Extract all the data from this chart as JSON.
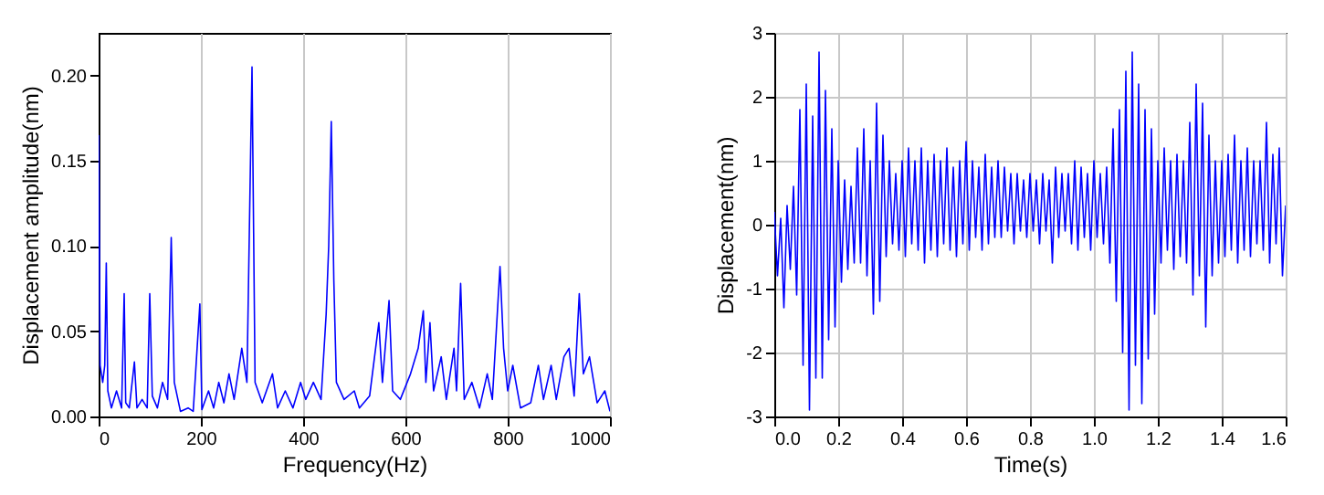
{
  "chart_data": [
    {
      "type": "line",
      "xlabel": "Frequency(Hz)",
      "ylabel": "Displacement amplitude(nm)",
      "grid": "x",
      "xlim": [
        0,
        1000
      ],
      "xticks": [
        0,
        200,
        400,
        600,
        800,
        1000
      ],
      "ylim": [
        0,
        0.225
      ],
      "yticks": [
        {
          "value": 0,
          "label": "0.00"
        },
        {
          "value": 0.05,
          "label": "0.05"
        },
        {
          "value": 0.1,
          "label": "0.10"
        },
        {
          "value": 0.15,
          "label": "0.15"
        },
        {
          "value": 0.2,
          "label": "0.20"
        }
      ],
      "x": [
        0,
        3,
        8,
        12,
        15,
        18,
        25,
        35,
        45,
        50,
        53,
        60,
        70,
        75,
        85,
        95,
        100,
        105,
        115,
        125,
        135,
        142,
        148,
        160,
        175,
        185,
        198,
        202,
        215,
        225,
        235,
        245,
        255,
        265,
        280,
        290,
        300,
        306,
        320,
        340,
        350,
        365,
        380,
        395,
        405,
        420,
        435,
        445,
        450,
        455,
        460,
        465,
        480,
        500,
        510,
        530,
        548,
        555,
        568,
        575,
        590,
        610,
        625,
        635,
        640,
        648,
        655,
        670,
        680,
        695,
        700,
        708,
        715,
        730,
        745,
        760,
        770,
        785,
        792,
        800,
        810,
        825,
        845,
        860,
        870,
        885,
        895,
        910,
        920,
        930,
        940,
        948,
        960,
        975,
        990,
        1000
      ],
      "series": [
        {
          "color": "#0000ff",
          "values": [
            0.165,
            0.03,
            0.02,
            0.03,
            0.09,
            0.015,
            0.005,
            0.015,
            0.005,
            0.072,
            0.008,
            0.005,
            0.032,
            0.005,
            0.01,
            0.005,
            0.072,
            0.012,
            0.005,
            0.02,
            0.01,
            0.105,
            0.02,
            0.003,
            0.005,
            0.003,
            0.066,
            0.004,
            0.015,
            0.005,
            0.02,
            0.008,
            0.025,
            0.01,
            0.04,
            0.02,
            0.205,
            0.02,
            0.008,
            0.025,
            0.005,
            0.015,
            0.005,
            0.02,
            0.01,
            0.02,
            0.01,
            0.06,
            0.1,
            0.173,
            0.08,
            0.02,
            0.01,
            0.015,
            0.005,
            0.012,
            0.055,
            0.02,
            0.068,
            0.015,
            0.01,
            0.025,
            0.04,
            0.062,
            0.02,
            0.055,
            0.015,
            0.035,
            0.01,
            0.04,
            0.015,
            0.078,
            0.01,
            0.02,
            0.005,
            0.025,
            0.01,
            0.088,
            0.04,
            0.015,
            0.03,
            0.005,
            0.008,
            0.03,
            0.01,
            0.03,
            0.01,
            0.035,
            0.04,
            0.012,
            0.072,
            0.025,
            0.035,
            0.008,
            0.015,
            0.003
          ]
        }
      ]
    },
    {
      "type": "line",
      "xlabel": "Time(s)",
      "ylabel": "Displacement(nm)",
      "grid": true,
      "xlim": [
        0,
        1.6
      ],
      "xticks": [
        {
          "value": 0,
          "label": "0.0"
        },
        {
          "value": 0.2,
          "label": "0.2"
        },
        {
          "value": 0.4,
          "label": "0.4"
        },
        {
          "value": 0.6,
          "label": "0.6"
        },
        {
          "value": 0.8,
          "label": "0.8"
        },
        {
          "value": 1,
          "label": "1.0"
        },
        {
          "value": 1.2,
          "label": "1.2"
        },
        {
          "value": 1.4,
          "label": "1.4"
        },
        {
          "value": 1.6,
          "label": "1.6"
        }
      ],
      "ylim": [
        -3,
        3
      ],
      "yticks": [
        -3,
        -2,
        -1,
        0,
        1,
        2,
        3
      ],
      "x": [
        0,
        0.01,
        0.02,
        0.03,
        0.04,
        0.05,
        0.06,
        0.07,
        0.08,
        0.09,
        0.1,
        0.11,
        0.12,
        0.13,
        0.14,
        0.15,
        0.16,
        0.17,
        0.18,
        0.19,
        0.2,
        0.21,
        0.22,
        0.23,
        0.24,
        0.25,
        0.26,
        0.27,
        0.28,
        0.29,
        0.3,
        0.31,
        0.32,
        0.33,
        0.34,
        0.35,
        0.36,
        0.37,
        0.38,
        0.39,
        0.4,
        0.41,
        0.42,
        0.43,
        0.44,
        0.45,
        0.46,
        0.47,
        0.48,
        0.49,
        0.5,
        0.51,
        0.52,
        0.53,
        0.54,
        0.55,
        0.56,
        0.57,
        0.58,
        0.59,
        0.6,
        0.61,
        0.62,
        0.63,
        0.64,
        0.65,
        0.66,
        0.67,
        0.68,
        0.69,
        0.7,
        0.71,
        0.72,
        0.73,
        0.74,
        0.75,
        0.76,
        0.77,
        0.78,
        0.79,
        0.8,
        0.81,
        0.82,
        0.83,
        0.84,
        0.85,
        0.86,
        0.87,
        0.88,
        0.89,
        0.9,
        0.91,
        0.92,
        0.93,
        0.94,
        0.95,
        0.96,
        0.97,
        0.98,
        0.99,
        1,
        1.01,
        1.02,
        1.03,
        1.04,
        1.05,
        1.06,
        1.07,
        1.08,
        1.09,
        1.1,
        1.11,
        1.12,
        1.13,
        1.14,
        1.15,
        1.16,
        1.17,
        1.18,
        1.19,
        1.2,
        1.21,
        1.22,
        1.23,
        1.24,
        1.25,
        1.26,
        1.27,
        1.28,
        1.29,
        1.3,
        1.31,
        1.32,
        1.33,
        1.34,
        1.35,
        1.36,
        1.37,
        1.38,
        1.39,
        1.4,
        1.41,
        1.42,
        1.43,
        1.44,
        1.45,
        1.46,
        1.47,
        1.48,
        1.49,
        1.5,
        1.51,
        1.52,
        1.53,
        1.54,
        1.55,
        1.56,
        1.57,
        1.58,
        1.59,
        1.6
      ],
      "series": [
        {
          "color": "#0000ff",
          "values": [
            0.2,
            -0.8,
            0.1,
            -1.3,
            0.3,
            -0.7,
            0.6,
            -1.1,
            1.8,
            -2.2,
            2.2,
            -2.9,
            1.7,
            -2.4,
            2.7,
            -2.4,
            2.1,
            -1.8,
            1.5,
            -1.6,
            1.0,
            -0.9,
            0.7,
            -0.7,
            0.6,
            -0.6,
            1.2,
            -0.6,
            1.5,
            -0.8,
            1.0,
            -1.4,
            1.9,
            -1.2,
            1.4,
            -0.5,
            1.0,
            -0.3,
            0.8,
            -0.4,
            1.0,
            -0.5,
            1.2,
            -0.3,
            1.0,
            -0.4,
            1.2,
            -0.6,
            1.0,
            -0.4,
            1.1,
            -0.5,
            1.0,
            -0.3,
            1.2,
            -0.4,
            0.9,
            -0.5,
            1.0,
            -0.3,
            1.3,
            -0.4,
            1.0,
            -0.2,
            0.9,
            -0.4,
            1.1,
            -0.3,
            0.9,
            -0.2,
            1.0,
            -0.2,
            0.9,
            -0.1,
            0.8,
            -0.3,
            0.8,
            -0.1,
            0.7,
            -0.2,
            0.8,
            -0.1,
            0.7,
            -0.3,
            0.8,
            -0.1,
            0.7,
            -0.6,
            0.9,
            -0.2,
            0.8,
            -0.1,
            0.8,
            -0.3,
            1.0,
            -0.4,
            0.9,
            -0.2,
            0.8,
            -0.4,
            1.0,
            -0.2,
            0.8,
            -0.3,
            0.9,
            -0.6,
            1.5,
            -1.2,
            1.8,
            -2.0,
            2.4,
            -2.9,
            2.7,
            -2.2,
            2.2,
            -2.8,
            1.8,
            -2.1,
            1.5,
            -1.4,
            1.0,
            -0.6,
            1.2,
            -0.4,
            1.0,
            -0.7,
            1.1,
            -0.5,
            1.0,
            -0.6,
            1.6,
            -1.1,
            2.2,
            -0.8,
            1.9,
            -1.6,
            1.4,
            -0.8,
            1.0,
            -0.6,
            1.0,
            -0.5,
            1.1,
            -0.4,
            1.4,
            -0.6,
            1.0,
            -0.4,
            1.2,
            -0.5,
            1.0,
            -0.3,
            1.0,
            -0.4,
            1.6,
            -0.6,
            1.1,
            -0.3,
            1.2,
            -0.8,
            0.3
          ]
        }
      ]
    }
  ]
}
